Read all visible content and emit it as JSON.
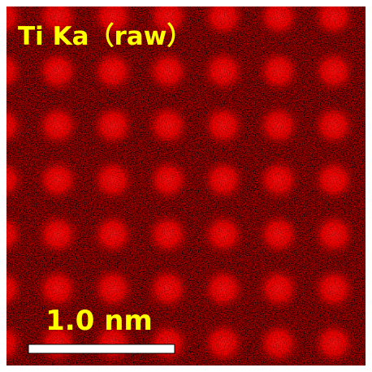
{
  "title": "Ti Ka（raw）",
  "scale_bar": {
    "label": "1.0 nm"
  }
}
